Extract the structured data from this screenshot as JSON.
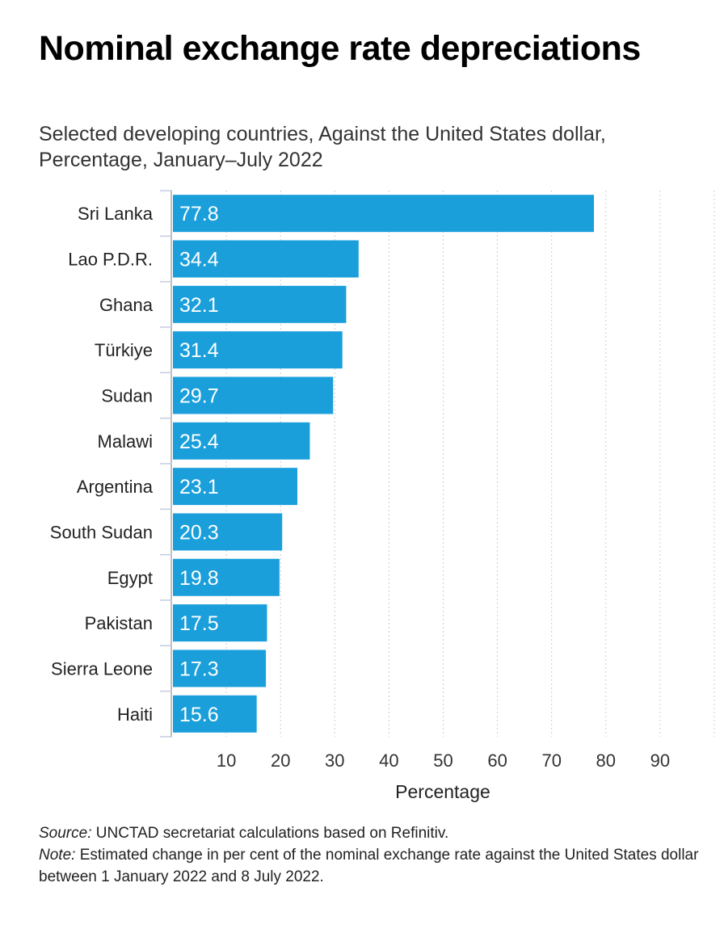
{
  "chart_data": {
    "type": "bar",
    "orientation": "horizontal",
    "title": "Nominal exchange rate depreciations",
    "subtitle": "Selected developing countries, Against the United States dollar, Percentage, January–July 2022",
    "categories": [
      "Sri Lanka",
      "Lao P.D.R.",
      "Ghana",
      "Türkiye",
      "Sudan",
      "Malawi",
      "Argentina",
      "South Sudan",
      "Egypt",
      "Pakistan",
      "Sierra Leone",
      "Haiti"
    ],
    "values": [
      77.8,
      34.4,
      32.1,
      31.4,
      29.7,
      25.4,
      23.1,
      20.3,
      19.8,
      17.5,
      17.3,
      15.6
    ],
    "value_labels": [
      "77.8",
      "34.4",
      "32.1",
      "31.4",
      "29.7",
      "25.4",
      "23.1",
      "20.3",
      "19.8",
      "17.5",
      "17.3",
      "15.6"
    ],
    "xlabel": "Percentage",
    "ylabel": "",
    "xlim": [
      0,
      100
    ],
    "xticks": [
      10,
      20,
      30,
      40,
      50,
      60,
      70,
      80,
      90
    ],
    "xtick_labels": [
      "10",
      "20",
      "30",
      "40",
      "50",
      "60",
      "70",
      "80",
      "90"
    ],
    "grid": true,
    "bar_color": "#1a9fdb"
  },
  "footer": {
    "source_label": "Source:",
    "source_text": " UNCTAD secretariat calculations based on Refinitiv.",
    "note_label": "Note:",
    "note_text": " Estimated change in per cent of the nominal exchange rate against the United States dollar between 1 January 2022 and 8 July 2022."
  }
}
